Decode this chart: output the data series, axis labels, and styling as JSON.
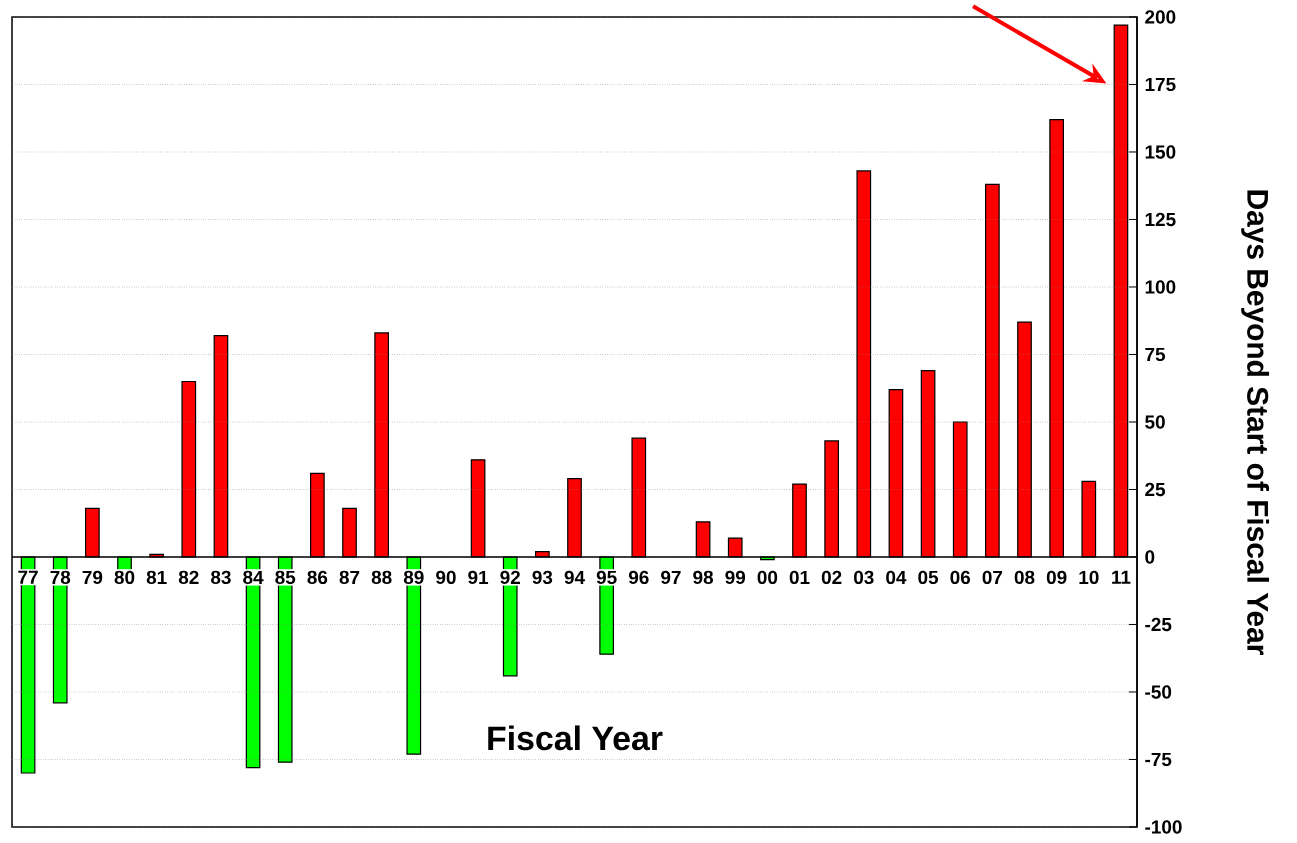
{
  "chart_data": {
    "type": "bar",
    "xlabel": "Fiscal Year",
    "ylabel": "Days Beyond Start of Fiscal Year",
    "categories": [
      "77",
      "78",
      "79",
      "80",
      "81",
      "82",
      "83",
      "84",
      "85",
      "86",
      "87",
      "88",
      "89",
      "90",
      "91",
      "92",
      "93",
      "94",
      "95",
      "96",
      "97",
      "98",
      "99",
      "00",
      "01",
      "02",
      "03",
      "04",
      "05",
      "06",
      "07",
      "08",
      "09",
      "10",
      "11"
    ],
    "values": [
      -80,
      -54,
      18,
      -5,
      1,
      65,
      82,
      -78,
      -76,
      31,
      18,
      83,
      -73,
      null,
      36,
      -44,
      2,
      29,
      -36,
      44,
      null,
      13,
      7,
      -1,
      27,
      43,
      143,
      62,
      69,
      50,
      138,
      87,
      162,
      28,
      197
    ],
    "colors": [
      "#00ff00",
      "#00ff00",
      "#ff0000",
      "#00ff00",
      "#ff0000",
      "#ff0000",
      "#ff0000",
      "#00ff00",
      "#00ff00",
      "#ff0000",
      "#ff0000",
      "#ff0000",
      "#00ff00",
      "#00ff00",
      "#ff0000",
      "#00ff00",
      "#ff0000",
      "#ff0000",
      "#00ff00",
      "#ff0000",
      "#ff0000",
      "#ff0000",
      "#ff0000",
      "#00ff00",
      "#ff0000",
      "#ff0000",
      "#ff0000",
      "#ff0000",
      "#ff0000",
      "#ff0000",
      "#ff0000",
      "#ff0000",
      "#ff0000",
      "#ff0000",
      "#ff0000"
    ],
    "ylim": [
      -100,
      200
    ],
    "yticks": [
      -100,
      -75,
      -50,
      -25,
      0,
      25,
      50,
      75,
      100,
      125,
      150,
      175,
      200
    ],
    "grid": "y"
  }
}
